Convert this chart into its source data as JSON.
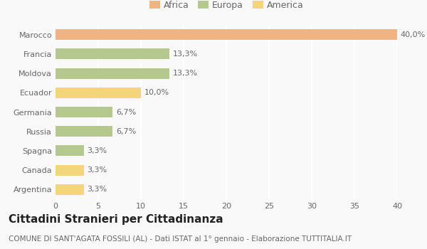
{
  "categories": [
    "Marocco",
    "Francia",
    "Moldova",
    "Ecuador",
    "Germania",
    "Russia",
    "Spagna",
    "Canada",
    "Argentina"
  ],
  "values": [
    40.0,
    13.3,
    13.3,
    10.0,
    6.7,
    6.7,
    3.3,
    3.3,
    3.3
  ],
  "bar_colors": [
    "#f0b482",
    "#b5c98e",
    "#b5c98e",
    "#f5d57a",
    "#b5c98e",
    "#b5c98e",
    "#b5c98e",
    "#f5d57a",
    "#f5d57a"
  ],
  "labels": [
    "40,0%",
    "13,3%",
    "13,3%",
    "10,0%",
    "6,7%",
    "6,7%",
    "3,3%",
    "3,3%",
    "3,3%"
  ],
  "legend_labels": [
    "Africa",
    "Europa",
    "America"
  ],
  "legend_colors": [
    "#f0b482",
    "#b5c98e",
    "#f5d57a"
  ],
  "xlim": [
    0,
    40
  ],
  "xticks": [
    0,
    5,
    10,
    15,
    20,
    25,
    30,
    35,
    40
  ],
  "title": "Cittadini Stranieri per Cittadinanza",
  "subtitle": "COMUNE DI SANT'AGATA FOSSILI (AL) - Dati ISTAT al 1° gennaio - Elaborazione TUTTITALIA.IT",
  "background_color": "#f9f9f9",
  "grid_color": "#ffffff",
  "bar_height": 0.55,
  "title_fontsize": 11,
  "subtitle_fontsize": 7.5,
  "label_fontsize": 8,
  "tick_fontsize": 8,
  "legend_fontsize": 9
}
